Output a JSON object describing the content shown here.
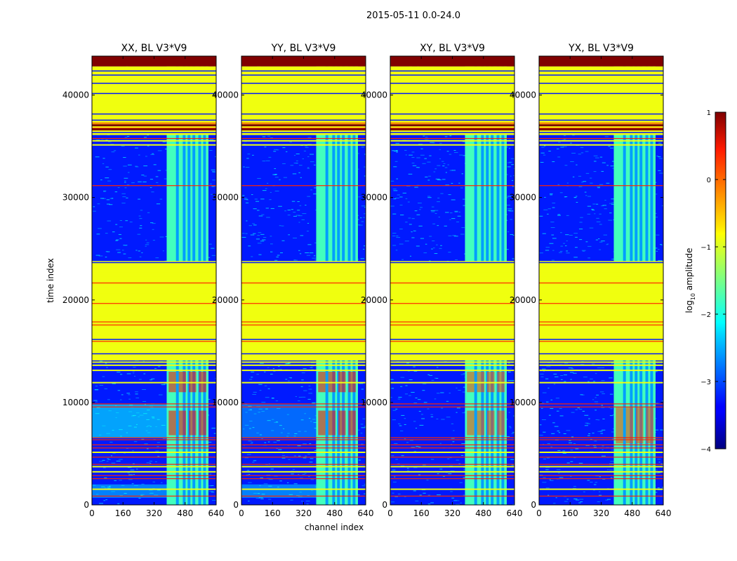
{
  "chart_data": {
    "type": "heatmap",
    "title": "2015-05-11 0.0-24.0",
    "xlabel": "channel index",
    "ylabel": "time index",
    "xlim": [
      0,
      640
    ],
    "ylim": [
      0,
      43800
    ],
    "xticks": [
      0,
      160,
      320,
      480,
      640
    ],
    "xtick_labels": [
      "0",
      "160",
      "320",
      "480",
      "640"
    ],
    "yticks": [
      0,
      10000,
      20000,
      30000,
      40000
    ],
    "ytick_labels": [
      "0",
      "10000",
      "20000",
      "30000",
      "40000"
    ],
    "colorscale": "jet",
    "colorbar": {
      "label": "log10 amplitude",
      "label_base": "log",
      "label_sub": "10",
      "label_rest": " amplitude",
      "range": [
        -4,
        1
      ],
      "ticks": [
        1,
        0,
        -1,
        -2,
        -3,
        -4
      ],
      "tick_labels": [
        "1",
        "0",
        "−1",
        "−2",
        "−3",
        "−4"
      ]
    },
    "panels": [
      {
        "title": "XX, BL V3*V9",
        "polarization": "XX"
      },
      {
        "title": "YY, BL V3*V9",
        "polarization": "YY"
      },
      {
        "title": "XY, BL V3*V9",
        "polarization": "XY"
      },
      {
        "title": "YX, BL V3*V9",
        "polarization": "YX"
      }
    ],
    "regions": {
      "flagged_constant_ranges_time": [
        [
          14100,
          23800
        ],
        [
          36100,
          42800
        ]
      ],
      "flagged_value_log10": -0.95,
      "top_saturated_time": [
        42800,
        43800
      ],
      "rfi_channel_range": [
        385,
        600
      ],
      "rfi_channel_gaps": [
        440,
        475,
        500,
        525,
        555,
        580
      ]
    }
  }
}
